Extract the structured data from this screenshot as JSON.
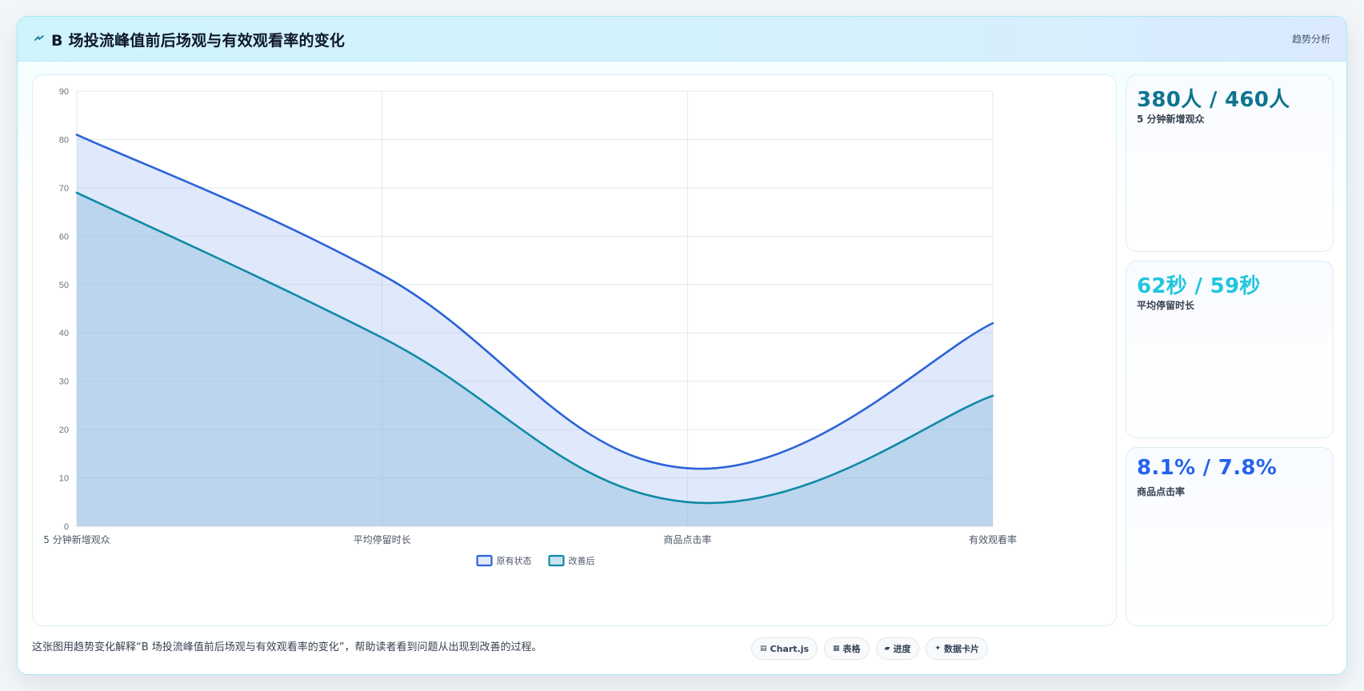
{
  "header": {
    "icon": "lightning-icon",
    "title": "B 场投流峰值前后场观与有效观看率的变化",
    "tag": "趋势分析"
  },
  "kpis": [
    {
      "value": "380人 / 460人",
      "label": "5 分钟新增观众",
      "color": "#0e7490"
    },
    {
      "value": "62秒 / 59秒",
      "label": "平均停留时长",
      "color": "#22c5dd"
    },
    {
      "value": "8.1% / 7.8%",
      "label": "商品点击率",
      "color": "#2563eb"
    }
  ],
  "footer": {
    "description": "这张图用趋势变化解释“B 场投流峰值前后场观与有效观看率的变化”，帮助读者看到问题从出现到改善的过程。",
    "chips": [
      {
        "icon": "chart-icon",
        "label": "Chart.js"
      },
      {
        "icon": "table-icon",
        "label": "表格"
      },
      {
        "icon": "progress-icon",
        "label": "进度"
      },
      {
        "icon": "sparkle-icon",
        "label": "数据卡片"
      }
    ]
  },
  "chart_data": {
    "type": "area",
    "categories": [
      "5 分钟新增观众",
      "平均停留时长",
      "商品点击率",
      "有效观看率"
    ],
    "series": [
      {
        "name": "原有状态",
        "values": [
          81,
          52,
          12,
          42
        ],
        "color": "#2b63d9",
        "fill": "rgba(165,188,243,0.35)"
      },
      {
        "name": "改善后",
        "values": [
          69,
          39,
          5,
          27
        ],
        "color": "#0e8aa5",
        "fill": "rgba(140,190,220,0.45)"
      }
    ],
    "ylim": [
      0,
      90
    ],
    "yticks": [
      0,
      10,
      20,
      30,
      40,
      50,
      60,
      70,
      80,
      90
    ],
    "grid": true,
    "legend": "bottom"
  }
}
